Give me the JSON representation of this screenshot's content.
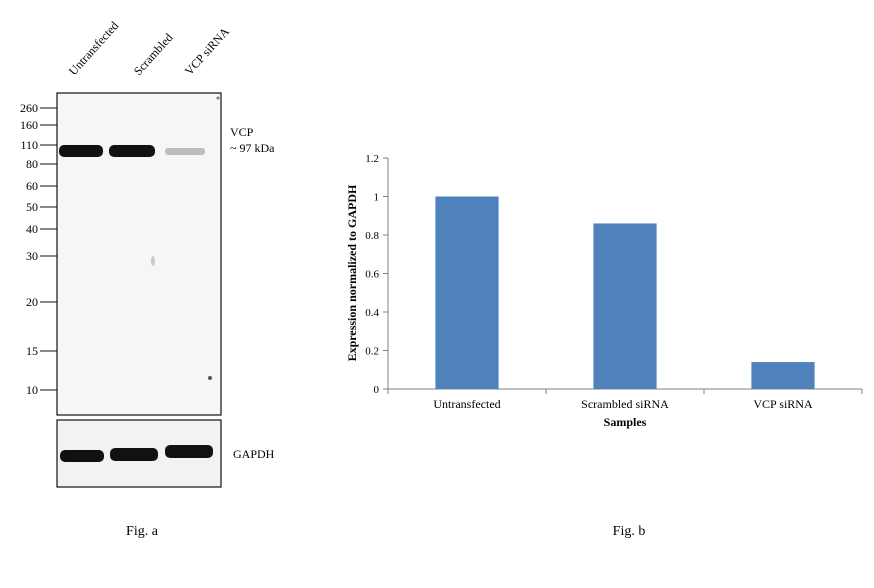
{
  "figure_a": {
    "caption": "Fig. a",
    "lane_labels": [
      "Untransfected",
      "Scrambled",
      "VCP siRNA"
    ],
    "marker_labels": [
      "260",
      "160",
      "110",
      "80",
      "60",
      "50",
      "40",
      "30",
      "20",
      "15",
      "10"
    ],
    "target_label_line1": "VCP",
    "target_label_line2": "~ 97 kDa",
    "loading_control_label": "GAPDH",
    "band_intensity": {
      "vcp": [
        1.0,
        1.0,
        0.12
      ],
      "gapdh": [
        1.0,
        1.0,
        1.0
      ]
    }
  },
  "figure_b": {
    "caption": "Fig. b"
  },
  "chart_data": {
    "type": "bar",
    "categories": [
      "Untransfected",
      "Scrambled siRNA",
      "VCP siRNA"
    ],
    "values": [
      1.0,
      0.86,
      0.14
    ],
    "xlabel": "Samples",
    "ylabel": "Expression normalized to GAPDH",
    "ylim": [
      0,
      1.2
    ],
    "yticks": [
      "0",
      "0.2",
      "0.4",
      "0.6",
      "0.8",
      "1",
      "1.2"
    ],
    "grid": false,
    "bar_color": "#4f81bd"
  }
}
